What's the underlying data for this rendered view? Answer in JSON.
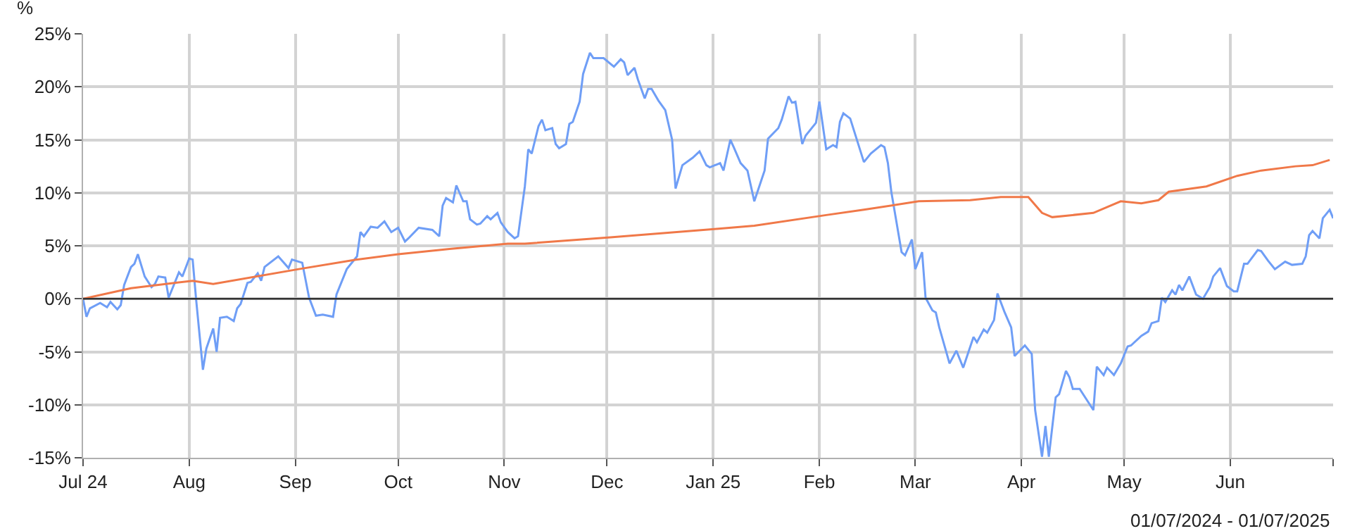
{
  "chart_data": {
    "type": "line",
    "ylabel": "%",
    "annotations": [
      "01/07/2024 - 01/07/2025"
    ],
    "xlim": [
      "2024-07-01",
      "2025-07-01"
    ],
    "xticks": [
      {
        "value": "2024-07-01",
        "label": "Jul 24"
      },
      {
        "value": "2024-08-01",
        "label": "Aug"
      },
      {
        "value": "2024-09-01",
        "label": "Sep"
      },
      {
        "value": "2024-10-01",
        "label": "Oct"
      },
      {
        "value": "2024-11-01",
        "label": "Nov"
      },
      {
        "value": "2024-12-01",
        "label": "Dec"
      },
      {
        "value": "2025-01-01",
        "label": "Jan 25"
      },
      {
        "value": "2025-02-01",
        "label": "Feb"
      },
      {
        "value": "2025-03-01",
        "label": "Mar"
      },
      {
        "value": "2025-04-01",
        "label": "Apr"
      },
      {
        "value": "2025-05-01",
        "label": "May"
      },
      {
        "value": "2025-06-01",
        "label": "Jun"
      },
      {
        "value": "2025-07-01",
        "label": null
      }
    ],
    "ylim": [
      -15,
      25
    ],
    "yticks": [
      {
        "value": -15,
        "label": "-15%"
      },
      {
        "value": -10,
        "label": "-10%"
      },
      {
        "value": -5,
        "label": "-5%"
      },
      {
        "value": 0,
        "label": "0%"
      },
      {
        "value": 5,
        "label": "5%"
      },
      {
        "value": 10,
        "label": "10%"
      },
      {
        "value": 15,
        "label": "15%"
      },
      {
        "value": 20,
        "label": "20%"
      },
      {
        "value": 25,
        "label": "25%"
      }
    ],
    "grid": true,
    "marker": "none",
    "line_style": "solid",
    "ref_lines": [
      {
        "axis": "y",
        "value": 0,
        "color": "#333333"
      }
    ],
    "series": [
      {
        "color": "#6f9ef6",
        "x": [
          "2024-07-01",
          "2024-07-02",
          "2024-07-03",
          "2024-07-06",
          "2024-07-08",
          "2024-07-09",
          "2024-07-11",
          "2024-07-12",
          "2024-07-13",
          "2024-07-15",
          "2024-07-16",
          "2024-07-17",
          "2024-07-19",
          "2024-07-21",
          "2024-07-22",
          "2024-07-23",
          "2024-07-25",
          "2024-07-26",
          "2024-07-29",
          "2024-07-30",
          "2024-08-01",
          "2024-08-02",
          "2024-08-03",
          "2024-08-05",
          "2024-08-06",
          "2024-08-08",
          "2024-08-09",
          "2024-08-10",
          "2024-08-12",
          "2024-08-14",
          "2024-08-15",
          "2024-08-16",
          "2024-08-18",
          "2024-08-19",
          "2024-08-21",
          "2024-08-22",
          "2024-08-23",
          "2024-08-27",
          "2024-08-30",
          "2024-08-31",
          "2024-09-03",
          "2024-09-05",
          "2024-09-07",
          "2024-09-09",
          "2024-09-12",
          "2024-09-13",
          "2024-09-16",
          "2024-09-19",
          "2024-09-20",
          "2024-09-21",
          "2024-09-23",
          "2024-09-25",
          "2024-09-27",
          "2024-09-29",
          "2024-10-01",
          "2024-10-03",
          "2024-10-04",
          "2024-10-07",
          "2024-10-11",
          "2024-10-13",
          "2024-10-14",
          "2024-10-15",
          "2024-10-17",
          "2024-10-18",
          "2024-10-20",
          "2024-10-21",
          "2024-10-22",
          "2024-10-24",
          "2024-10-25",
          "2024-10-27",
          "2024-10-28",
          "2024-10-30",
          "2024-10-31",
          "2024-11-02",
          "2024-11-04",
          "2024-11-05",
          "2024-11-07",
          "2024-11-08",
          "2024-11-09",
          "2024-11-11",
          "2024-11-12",
          "2024-11-13",
          "2024-11-15",
          "2024-11-16",
          "2024-11-17",
          "2024-11-19",
          "2024-11-20",
          "2024-11-21",
          "2024-11-23",
          "2024-11-24",
          "2024-11-26",
          "2024-11-27",
          "2024-11-30",
          "2024-12-03",
          "2024-12-05",
          "2024-12-06",
          "2024-12-07",
          "2024-12-09",
          "2024-12-10",
          "2024-12-12",
          "2024-12-13",
          "2024-12-14",
          "2024-12-16",
          "2024-12-18",
          "2024-12-20",
          "2024-12-21",
          "2024-12-23",
          "2024-12-26",
          "2024-12-28",
          "2024-12-30",
          "2024-12-31",
          "2025-01-03",
          "2025-01-04",
          "2025-01-06",
          "2025-01-07",
          "2025-01-09",
          "2025-01-11",
          "2025-01-13",
          "2025-01-16",
          "2025-01-17",
          "2025-01-20",
          "2025-01-21",
          "2025-01-23",
          "2025-01-24",
          "2025-01-25",
          "2025-01-27",
          "2025-01-28",
          "2025-01-31",
          "2025-02-01",
          "2025-02-03",
          "2025-02-05",
          "2025-02-06",
          "2025-02-07",
          "2025-02-08",
          "2025-02-10",
          "2025-02-14",
          "2025-02-16",
          "2025-02-19",
          "2025-02-20",
          "2025-02-21",
          "2025-02-22",
          "2025-02-25",
          "2025-02-26",
          "2025-02-28",
          "2025-03-01",
          "2025-03-03",
          "2025-03-04",
          "2025-03-06",
          "2025-03-07",
          "2025-03-08",
          "2025-03-11",
          "2025-03-13",
          "2025-03-15",
          "2025-03-18",
          "2025-03-19",
          "2025-03-21",
          "2025-03-22",
          "2025-03-24",
          "2025-03-25",
          "2025-03-27",
          "2025-03-29",
          "2025-03-30",
          "2025-04-02",
          "2025-04-04",
          "2025-04-05",
          "2025-04-07",
          "2025-04-08",
          "2025-04-09",
          "2025-04-11",
          "2025-04-12",
          "2025-04-14",
          "2025-04-15",
          "2025-04-16",
          "2025-04-18",
          "2025-04-22",
          "2025-04-23",
          "2025-04-25",
          "2025-04-26",
          "2025-04-28",
          "2025-04-30",
          "2025-05-02",
          "2025-05-03",
          "2025-05-06",
          "2025-05-08",
          "2025-05-09",
          "2025-05-11",
          "2025-05-12",
          "2025-05-13",
          "2025-05-15",
          "2025-05-16",
          "2025-05-17",
          "2025-05-18",
          "2025-05-20",
          "2025-05-22",
          "2025-05-24",
          "2025-05-26",
          "2025-05-27",
          "2025-05-29",
          "2025-05-31",
          "2025-06-02",
          "2025-06-03",
          "2025-06-05",
          "2025-06-06",
          "2025-06-09",
          "2025-06-10",
          "2025-06-12",
          "2025-06-14",
          "2025-06-17",
          "2025-06-19",
          "2025-06-22",
          "2025-06-23",
          "2025-06-24",
          "2025-06-25",
          "2025-06-27",
          "2025-06-28",
          "2025-06-30",
          "2025-07-01"
        ],
        "values": [
          0,
          -1.7,
          -0.9,
          -0.4,
          -0.8,
          -0.3,
          -1.0,
          -0.6,
          1.3,
          3.0,
          3.3,
          4.2,
          2.1,
          1.1,
          1.4,
          2.1,
          2.0,
          0.1,
          2.5,
          2.1,
          3.8,
          3.7,
          0,
          -6.7,
          -4.7,
          -2.8,
          -5.0,
          -1.8,
          -1.7,
          -2.1,
          -0.9,
          -0.5,
          1.5,
          1.6,
          2.4,
          1.7,
          3.0,
          4.0,
          2.9,
          3.7,
          3.4,
          0.1,
          -1.6,
          -1.5,
          -1.7,
          0.4,
          2.8,
          4.0,
          6.3,
          5.9,
          6.8,
          6.7,
          7.3,
          6.3,
          6.7,
          5.4,
          5.7,
          6.7,
          6.5,
          5.9,
          8.8,
          9.5,
          9.1,
          10.7,
          9.2,
          9.2,
          7.5,
          7.0,
          7.1,
          7.8,
          7.5,
          8.1,
          7.2,
          6.3,
          5.7,
          5.9,
          10.6,
          14.1,
          13.7,
          16.3,
          16.9,
          15.9,
          16.1,
          14.6,
          14.2,
          14.6,
          16.5,
          16.7,
          18.6,
          21.2,
          23.2,
          22.7,
          22.7,
          21.9,
          22.6,
          22.3,
          21.1,
          21.8,
          20.7,
          18.9,
          19.8,
          19.8,
          18.7,
          17.8,
          15.0,
          10.4,
          12.6,
          13.3,
          13.9,
          12.6,
          12.4,
          12.8,
          12.1,
          15.0,
          14.3,
          12.8,
          12.1,
          9.2,
          12.1,
          15.1,
          16.1,
          16.9,
          19.1,
          18.5,
          18.6,
          14.6,
          15.4,
          16.6,
          18.6,
          14.1,
          14.5,
          14.3,
          16.7,
          17.5,
          17.0,
          12.9,
          13.7,
          14.5,
          14.3,
          12.8,
          10.1,
          4.4,
          4.1,
          5.6,
          2.8,
          4.4,
          0.1,
          -1.1,
          -1.3,
          -2.7,
          -6.1,
          -4.9,
          -6.5,
          -3.6,
          -4.1,
          -2.9,
          -3.2,
          -2.0,
          0.5,
          -1.2,
          -2.7,
          -5.4,
          -4.4,
          -5.2,
          -10.5,
          -14.9,
          -12.0,
          -14.9,
          -9.3,
          -9.0,
          -6.8,
          -7.4,
          -8.5,
          -8.5,
          -10.5,
          -6.4,
          -7.2,
          -6.5,
          -7.2,
          -6.1,
          -4.5,
          -4.4,
          -3.5,
          -3.1,
          -2.3,
          -2.1,
          0.1,
          -0.3,
          0.8,
          0.4,
          1.3,
          0.8,
          2.1,
          0.4,
          0,
          1.1,
          2.1,
          2.9,
          1.2,
          0.7,
          0.7,
          3.3,
          3.3,
          4.6,
          4.5,
          3.6,
          2.8,
          3.5,
          3.2,
          3.3,
          4.0,
          6.0,
          6.4,
          5.7,
          7.6,
          8.4,
          7.6
        ]
      },
      {
        "color": "#f07848",
        "x": [
          "2024-07-01",
          "2024-07-15",
          "2024-08-02",
          "2024-08-08",
          "2024-09-02",
          "2024-09-19",
          "2024-10-01",
          "2024-10-16",
          "2024-11-02",
          "2024-11-07",
          "2024-12-02",
          "2025-01-02",
          "2025-01-13",
          "2025-02-03",
          "2025-02-14",
          "2025-03-02",
          "2025-03-17",
          "2025-03-26",
          "2025-04-03",
          "2025-04-07",
          "2025-04-10",
          "2025-04-22",
          "2025-04-30",
          "2025-05-06",
          "2025-05-11",
          "2025-05-14",
          "2025-05-25",
          "2025-06-03",
          "2025-06-10",
          "2025-06-20",
          "2025-06-25",
          "2025-06-30"
        ],
        "values": [
          0,
          1.0,
          1.7,
          1.4,
          2.8,
          3.7,
          4.2,
          4.7,
          5.2,
          5.2,
          5.8,
          6.6,
          6.9,
          7.9,
          8.4,
          9.2,
          9.3,
          9.6,
          9.6,
          8.1,
          7.7,
          8.1,
          9.2,
          9.0,
          9.3,
          10.1,
          10.6,
          11.6,
          12.1,
          12.5,
          12.6,
          13.1
        ]
      }
    ]
  }
}
